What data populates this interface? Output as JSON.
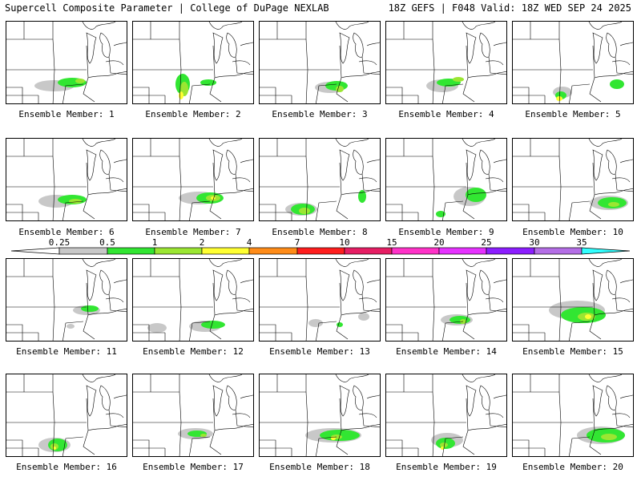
{
  "header": {
    "left": "Supercell Composite Parameter | College of DuPage NEXLAB",
    "right": "18Z GEFS | F048 Valid: 18Z WED SEP 24 2025"
  },
  "members": [
    {
      "label": "Ensemble Member: 1"
    },
    {
      "label": "Ensemble Member: 2"
    },
    {
      "label": "Ensemble Member: 3"
    },
    {
      "label": "Ensemble Member: 4"
    },
    {
      "label": "Ensemble Member: 5"
    },
    {
      "label": "Ensemble Member: 6"
    },
    {
      "label": "Ensemble Member: 7"
    },
    {
      "label": "Ensemble Member: 8"
    },
    {
      "label": "Ensemble Member: 9"
    },
    {
      "label": "Ensemble Member: 10"
    },
    {
      "label": "Ensemble Member: 11"
    },
    {
      "label": "Ensemble Member: 12"
    },
    {
      "label": "Ensemble Member: 13"
    },
    {
      "label": "Ensemble Member: 14"
    },
    {
      "label": "Ensemble Member: 15"
    },
    {
      "label": "Ensemble Member: 16"
    },
    {
      "label": "Ensemble Member: 17"
    },
    {
      "label": "Ensemble Member: 18"
    },
    {
      "label": "Ensemble Member: 19"
    },
    {
      "label": "Ensemble Member: 20"
    }
  ],
  "colorbar": {
    "ticks": [
      "0.25",
      "0.5",
      "1",
      "2",
      "4",
      "7",
      "10",
      "15",
      "20",
      "25",
      "30",
      "35"
    ],
    "colors": [
      "#c8c8c8",
      "#32e632",
      "#9be632",
      "#ffff32",
      "#ff8c19",
      "#ff1e1e",
      "#e61e64",
      "#ff32c8",
      "#e632ff",
      "#8c1eff",
      "#b46ee6",
      "#32ffff"
    ]
  }
}
